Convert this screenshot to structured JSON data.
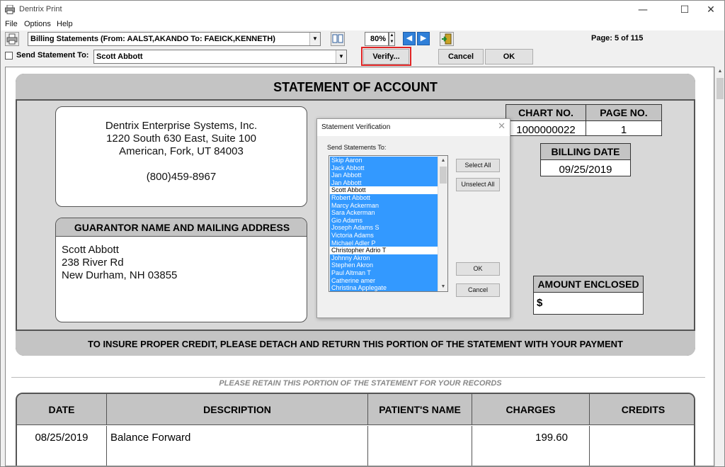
{
  "window": {
    "title": "Dentrix Print",
    "min_glyph": "—",
    "max_glyph": "☐",
    "close_glyph": "✕"
  },
  "menu": [
    "File",
    "Options",
    "Help"
  ],
  "toolbar": {
    "report_select": "Billing Statements (From: AALST,AKANDO To: FAEICK,KENNETH)",
    "zoom": "80%",
    "page": "Page: 5 of 115",
    "send_label": "Send Statement To:",
    "send_select": "Scott Abbott",
    "verify_label": "Verify...",
    "cancel_label": "Cancel",
    "ok_label": "OK",
    "prev_glyph": "◀",
    "next_glyph": "▶",
    "spin_up": "▲",
    "spin_down": "▼",
    "drop_glyph": "▼"
  },
  "statement": {
    "title": "STATEMENT OF ACCOUNT",
    "company": [
      "Dentrix Enterprise Systems, Inc.",
      "1220 South 630 East, Suite 100",
      "American, Fork, UT 84003",
      "(800)459-8967"
    ],
    "chart_no_label": "CHART NO.",
    "chart_no": "1000000022",
    "page_no_label": "PAGE NO.",
    "page_no": "1",
    "billing_date_label": "BILLING DATE",
    "billing_date": "09/25/2019",
    "guarantor_label": "GUARANTOR NAME AND MAILING ADDRESS",
    "guarantor": [
      "Scott Abbott",
      "238 River Rd",
      "New Durham, NH  03855"
    ],
    "amount_enclosed_label": "AMOUNT ENCLOSED",
    "amount_symbol": "$",
    "detach_text": "TO INSURE PROPER CREDIT, PLEASE DETACH AND RETURN THIS PORTION OF THE STATEMENT WITH YOUR PAYMENT",
    "retain_text": "PLEASE RETAIN THIS PORTION OF THE STATEMENT FOR YOUR RECORDS",
    "columns": [
      "DATE",
      "DESCRIPTION",
      "PATIENT'S NAME",
      "CHARGES",
      "CREDITS"
    ],
    "row": {
      "date": "08/25/2019",
      "description": "Balance Forward",
      "patient": "",
      "charges": "199.60",
      "credits": ""
    }
  },
  "dialog": {
    "title": "Statement Verification",
    "send_to_label": "Send Statements To:",
    "select_all": "Select All",
    "unselect_all": "Unselect All",
    "ok": "OK",
    "cancel": "Cancel",
    "close_glyph": "✕",
    "recipients": [
      {
        "name": "Skip Aaron",
        "selected": true
      },
      {
        "name": "Jack Abbott",
        "selected": true
      },
      {
        "name": "Jan Abbott",
        "selected": true
      },
      {
        "name": "Jan Abbott",
        "selected": true
      },
      {
        "name": "Scott Abbott",
        "selected": false
      },
      {
        "name": "Robert Abbott",
        "selected": true
      },
      {
        "name": "Marcy Ackerman",
        "selected": true
      },
      {
        "name": "Sara Ackerman",
        "selected": true
      },
      {
        "name": "Gio Adams",
        "selected": true
      },
      {
        "name": "Joseph Adams S",
        "selected": true
      },
      {
        "name": "Victoria Adams",
        "selected": true
      },
      {
        "name": "Michael Adler P",
        "selected": true
      },
      {
        "name": "Christopher Adrio T",
        "selected": false
      },
      {
        "name": "Johnny Akron",
        "selected": true
      },
      {
        "name": "Stephen Akron",
        "selected": true
      },
      {
        "name": "Paul Altman T",
        "selected": true
      },
      {
        "name": "Catherine amer",
        "selected": true
      },
      {
        "name": "Christina Applegate",
        "selected": true
      }
    ]
  }
}
